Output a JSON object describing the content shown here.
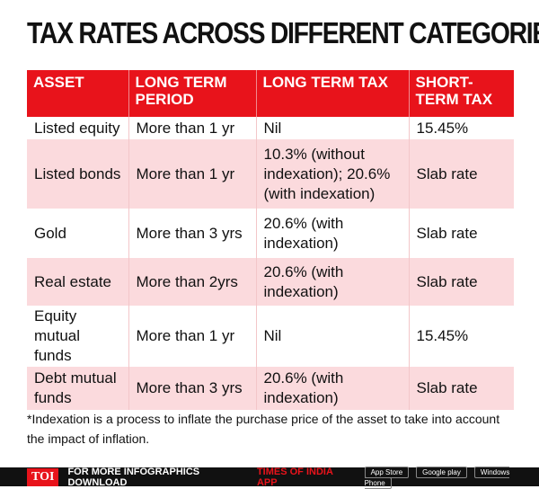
{
  "header": {
    "title": "TAX RATES ACROSS DIFFERENT CATEGORIES"
  },
  "table": {
    "columns": [
      "ASSET",
      "LONG TERM PERIOD",
      "LONG TERM TAX",
      "SHORT-TERM TAX"
    ],
    "rows": [
      [
        "Listed equity",
        "More than 1 yr",
        "Nil",
        "15.45%"
      ],
      [
        "Listed bonds",
        "More than 1 yr",
        "10.3% (without indexation); 20.6% (with indexation)",
        "Slab rate"
      ],
      [
        "Gold",
        "More than 3 yrs",
        "20.6% (with indexation)",
        "Slab rate"
      ],
      [
        "Real estate",
        "More than  2yrs",
        "20.6% (with indexation)",
        "Slab rate"
      ],
      [
        "Equity mutual funds",
        "More than 1 yr",
        "Nil",
        "15.45%"
      ],
      [
        "Debt mutual funds",
        "More than 3 yrs",
        "20.6% (with indexation)",
        "Slab rate"
      ]
    ]
  },
  "footnote": "*Indexation is a process to inflate the purchase price of the asset to take into account the impact of inflation.",
  "footer": {
    "logo": "TOI",
    "text": "FOR MORE  INFOGRAPHICS DOWNLOAD",
    "highlight": "TIMES OF INDIA APP",
    "badges": [
      "App Store",
      "Google play",
      "Windows Phone"
    ]
  }
}
